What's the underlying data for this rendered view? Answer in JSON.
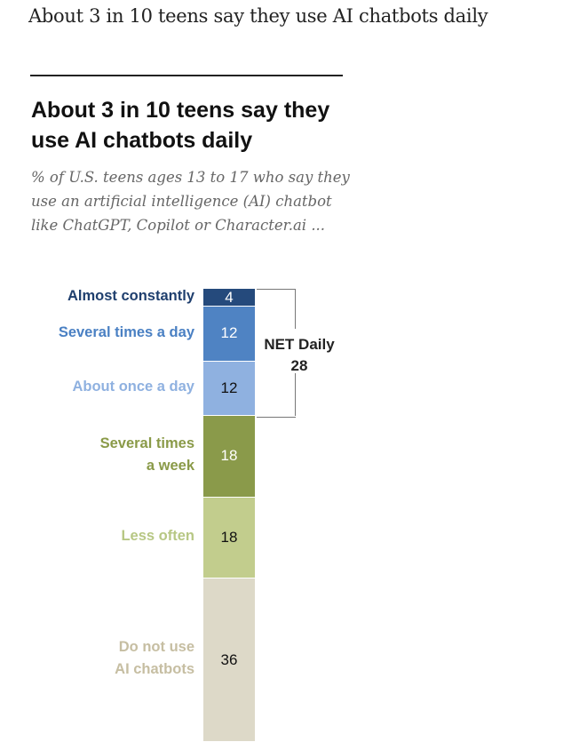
{
  "page_title": "About 3 in 10 teens say they use AI chatbots daily",
  "chart_data": {
    "type": "bar",
    "title": "About 3 in 10 teens say they use AI chatbots daily",
    "subtitle": "% of U.S. teens ages 13 to 17 who say they use an artificial intelligence (AI) chatbot like ChatGPT, Copilot or Character.ai ...",
    "stacked": true,
    "categories": [
      "Almost constantly",
      "Several times a day",
      "About once a day",
      "Several times\na week",
      "Less often",
      "Do not use\nAI chatbots"
    ],
    "values": [
      4,
      12,
      12,
      18,
      18,
      36
    ],
    "value_labels": [
      "4",
      "12",
      "12",
      "18",
      "18",
      "36"
    ],
    "bar_colors": [
      "#254a7c",
      "#4f83c3",
      "#8fb1e0",
      "#8a9a4a",
      "#c2cd8d",
      "#ddd9c8"
    ],
    "label_colors": [
      "#1f3f6e",
      "#4a80c3",
      "#8fb1e0",
      "#8a9a48",
      "#b7c784",
      "#c6bea2"
    ],
    "value_text_colors": [
      "#ffffff",
      "#ffffff",
      "#111111",
      "#ffffff",
      "#111111",
      "#111111"
    ],
    "net": {
      "label": "NET Daily",
      "value": "28"
    },
    "ylim": [
      0,
      100
    ]
  }
}
